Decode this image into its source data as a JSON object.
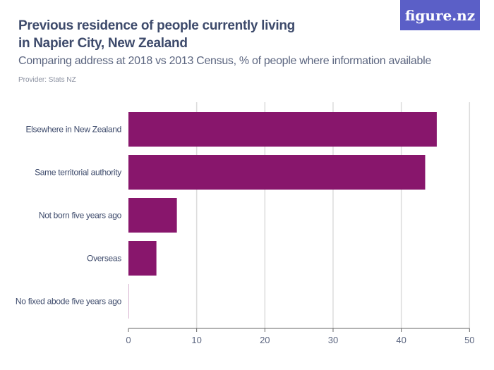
{
  "header": {
    "title": "Previous residence of people currently living in Napier City, New Zealand",
    "subtitle": "Comparing address at 2018 vs 2013 Census, % of people where information available",
    "provider": "Provider: Stats NZ",
    "logo": "figure.nz"
  },
  "chart_data": {
    "type": "bar",
    "orientation": "horizontal",
    "categories": [
      "Elsewhere in New Zealand",
      "Same territorial authority",
      "Not born five years ago",
      "Overseas",
      "No fixed abode five years ago"
    ],
    "values": [
      45.2,
      43.5,
      7.1,
      4.1,
      0.05
    ],
    "xlim": [
      0,
      50
    ],
    "xticks": [
      0,
      10,
      20,
      30,
      40,
      50
    ],
    "grid": true,
    "bar_color": "#88166c"
  }
}
